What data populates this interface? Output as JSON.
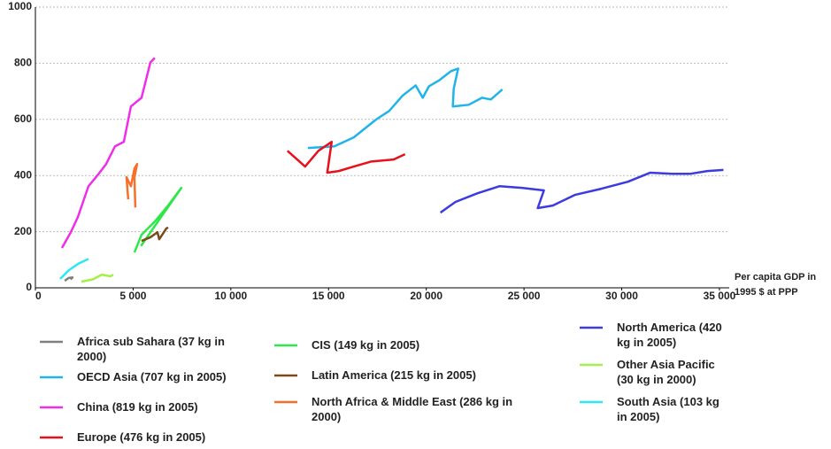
{
  "chart_data": {
    "type": "line",
    "x_label": "Per capita GDP in 1995 $ at PPP",
    "xlim": [
      0,
      35500
    ],
    "ylim": [
      0,
      1000
    ],
    "xticks": [
      0,
      {
        "value": 5000,
        "label": "5 000"
      },
      {
        "value": 10000,
        "label": "10 000"
      },
      {
        "value": 15000,
        "label": "15 000"
      },
      {
        "value": 20000,
        "label": "20 000"
      },
      {
        "value": 25000,
        "label": "25 000"
      },
      {
        "value": 30000,
        "label": "30 000"
      },
      {
        "value": 35000,
        "label": "35 000"
      }
    ],
    "yticks": [
      0,
      200,
      400,
      600,
      800,
      1000
    ],
    "grid": true,
    "series": [
      {
        "name": "Africa sub Sahara (37 kg in 2000)",
        "color": "#808080",
        "x": [
          1500,
          1700,
          1900,
          1800
        ],
        "values": [
          25,
          35,
          37,
          30
        ]
      },
      {
        "name": "OECD Asia (707 kg in 2005)",
        "color": "#1fb5e8",
        "x": [
          13937,
          15295,
          16290,
          17421,
          18100,
          18779,
          19458,
          19820,
          20136,
          20679,
          21268,
          21630,
          21403,
          21358,
          22173,
          22851,
          23304,
          23892
        ],
        "values": [
          498,
          504,
          536,
          599,
          630,
          684,
          721,
          677,
          718,
          740,
          772,
          781,
          709,
          646,
          652,
          677,
          671,
          707
        ]
      },
      {
        "name": "China (819 kg in 2005)",
        "color": "#ee2ee8",
        "x": [
          1358,
          1810,
          2172,
          2715,
          3168,
          3620,
          4073,
          4525,
          4887,
          5430,
          5883,
          6109
        ],
        "values": [
          142,
          198,
          252,
          362,
          400,
          441,
          504,
          520,
          646,
          677,
          803,
          819
        ]
      },
      {
        "name": "Europe (476 kg in 2005)",
        "color": "#e8101a",
        "x": [
          12896,
          13801,
          14480,
          15159,
          14933,
          15521,
          16290,
          17195,
          18326,
          18915
        ],
        "values": [
          488,
          432,
          488,
          520,
          410,
          416,
          432,
          450,
          457,
          476
        ]
      },
      {
        "name": "CIS (149 kg in 2005)",
        "color": "#2ee84a",
        "x": [
          5068,
          5430,
          6109,
          6788,
          7467,
          5400
        ],
        "values": [
          126,
          189,
          236,
          293,
          356,
          149
        ]
      },
      {
        "name": "Latin America (215 kg in 2005)",
        "color": "#7a4a18",
        "x": [
          5430,
          5883,
          6245,
          6335,
          6697,
          6788
        ],
        "values": [
          167,
          180,
          198,
          173,
          211,
          215
        ]
      },
      {
        "name": "North Africa & Middle East (286 kg in 2000)",
        "color": "#f5702a",
        "x": [
          4751,
          4661,
          4887,
          5068,
          5204,
          5068,
          5113
        ],
        "values": [
          315,
          394,
          362,
          425,
          441,
          394,
          286
        ]
      },
      {
        "name": "North America (420 kg in 2005)",
        "color": "#3b3be0",
        "x": [
          20725,
          21494,
          22625,
          23756,
          24888,
          26019,
          25702,
          26471,
          27602,
          28960,
          30318,
          31449,
          32581,
          33486,
          34391,
          35205
        ],
        "values": [
          268,
          306,
          337,
          362,
          356,
          347,
          284,
          293,
          331,
          353,
          378,
          410,
          406,
          406,
          416,
          420
        ]
      },
      {
        "name": "Other Asia Pacific (30 kg in 2000)",
        "color": "#a4f04a",
        "x": [
          2353,
          2941,
          3394,
          3846,
          3982
        ],
        "values": [
          22,
          30,
          47,
          41,
          47
        ]
      },
      {
        "name": "South Asia (103 kg in 2005)",
        "color": "#2ee8f0",
        "x": [
          1267,
          1720,
          2172,
          2715
        ],
        "values": [
          32,
          63,
          85,
          103
        ]
      }
    ]
  }
}
